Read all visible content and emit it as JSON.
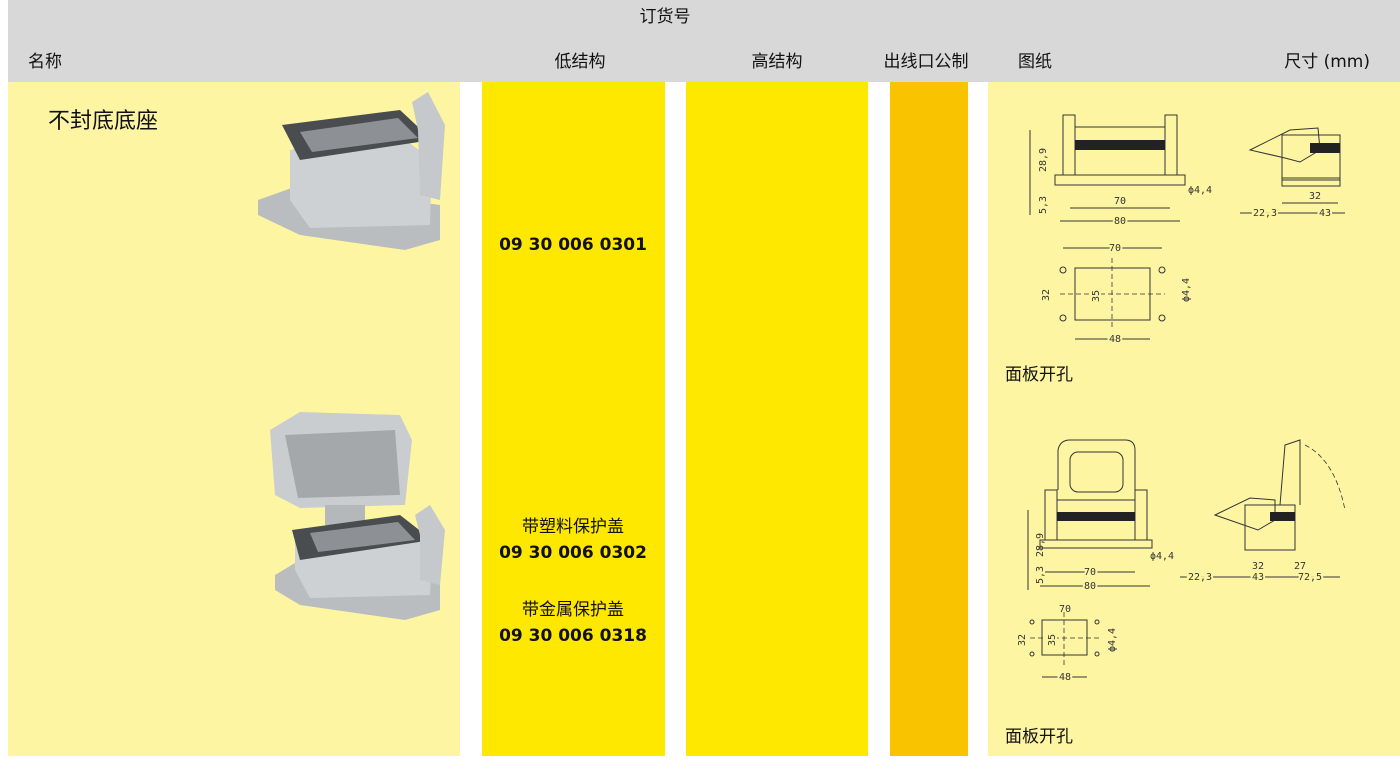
{
  "header": {
    "group_label": "订货号",
    "columns": [
      "名称",
      "低结构",
      "高结构",
      "出线口公制",
      "图纸",
      "尺寸 (mm)"
    ]
  },
  "rows": [
    {
      "name": "不封底底座",
      "order_numbers": [
        {
          "number": "09 30 006 0301"
        }
      ],
      "drawings": {
        "side": [
          "28,9",
          "5,3",
          "70",
          "80",
          "ϕ4,4"
        ],
        "end": [
          "32",
          "22,3",
          "43"
        ],
        "cutout": [
          "70",
          "32",
          "35",
          "ϕ4,4",
          "48"
        ]
      },
      "cutout_label": "面板开孔"
    },
    {
      "order_numbers": [
        {
          "note": "带塑料保护盖",
          "number": "09 30 006 0302"
        },
        {
          "note": "带金属保护盖",
          "number": "09 30 006 0318"
        }
      ],
      "drawings": {
        "side": [
          "28,9",
          "5,3",
          "70",
          "80",
          "ϕ4,4"
        ],
        "end": [
          "32",
          "27",
          "22,3",
          "43",
          "72,5"
        ],
        "cutout": [
          "70",
          "32",
          "35",
          "ϕ4,4",
          "48"
        ]
      },
      "cutout_label": "面板开孔"
    }
  ]
}
